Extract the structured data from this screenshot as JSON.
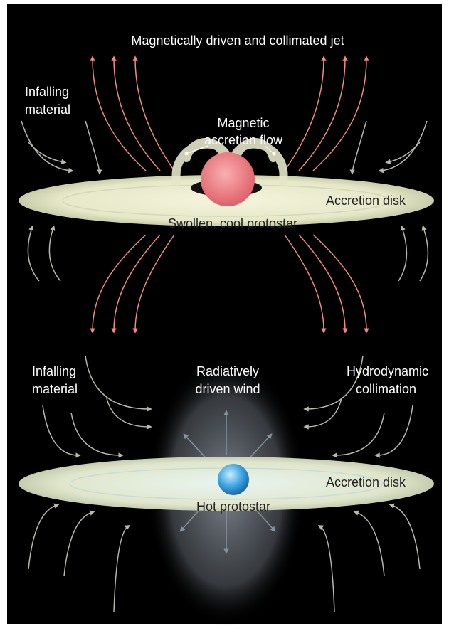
{
  "top_panel": {
    "title": "Magnetically driven and collimated jet",
    "infalling": [
      "Infalling",
      "material"
    ],
    "accretion_flow": [
      "Magnetic",
      "accretion flow"
    ],
    "disk": "Accretion disk",
    "star": "Swollen, cool protostar"
  },
  "bottom_panel": {
    "infalling": [
      "Infalling",
      "material"
    ],
    "wind": [
      "Radiatively",
      "driven wind"
    ],
    "collimation": [
      "Hydrodynamic",
      "collimation"
    ],
    "disk": "Accretion disk",
    "star": "Hot protostar"
  }
}
